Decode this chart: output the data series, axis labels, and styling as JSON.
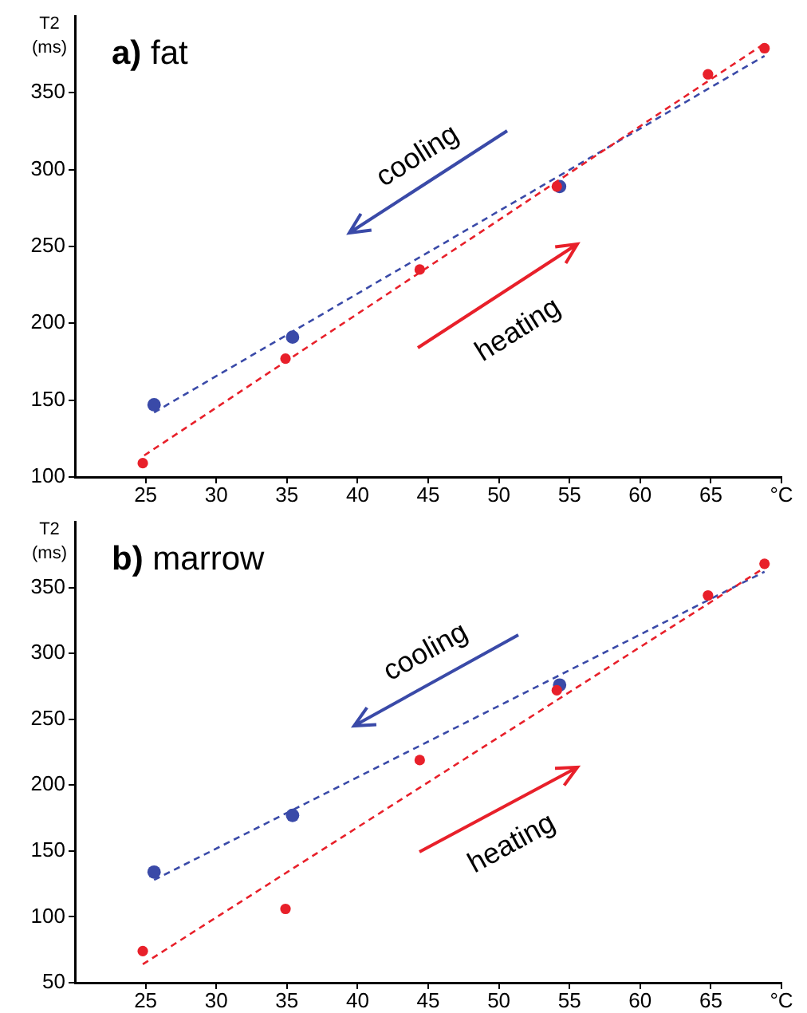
{
  "chart_data": [
    {
      "type": "scatter",
      "title": "a) fat",
      "ylabel": "T2 (ms)",
      "annotations": [
        "cooling",
        "heating"
      ],
      "grid": false,
      "legend": false,
      "xlim": [
        20,
        70
      ],
      "xticks": [
        25,
        30,
        35,
        40,
        45,
        50,
        55,
        60,
        65,
        {
          "value": 70,
          "label": "°C"
        }
      ],
      "ylim": [
        100,
        400
      ],
      "yticks": [
        100,
        150,
        200,
        250,
        300,
        350
      ],
      "series": [
        {
          "type": "line",
          "color": "#e8202a",
          "x": [
            24.9,
            68.8
          ],
          "values": [
            114,
            382
          ],
          "marker": "none",
          "line_style": "dashed"
        },
        {
          "type": "line",
          "color": "#3a4aa8",
          "x": [
            25.6,
            68.8
          ],
          "values": [
            142,
            374
          ],
          "marker": "none",
          "line_style": "dashed"
        },
        {
          "color": "#e8202a",
          "x": [
            24.8,
            34.9,
            44.4,
            54.1,
            64.8,
            68.8
          ],
          "values": [
            109,
            177,
            235,
            289,
            362,
            379
          ],
          "marker": "circle"
        },
        {
          "color": "#3a4aa8",
          "x": [
            25.6,
            35.4,
            54.3
          ],
          "values": [
            147,
            191,
            289
          ],
          "marker": "circle"
        }
      ]
    },
    {
      "type": "scatter",
      "title": "b) marrow",
      "ylabel": "T2 (ms)",
      "annotations": [
        "cooling",
        "heating"
      ],
      "grid": false,
      "legend": false,
      "xlim": [
        20,
        70
      ],
      "xticks": [
        25,
        30,
        35,
        40,
        45,
        50,
        55,
        60,
        65,
        {
          "value": 70,
          "label": "°C"
        }
      ],
      "ylim": [
        50,
        400
      ],
      "yticks": [
        50,
        100,
        150,
        200,
        250,
        300,
        350
      ],
      "series": [
        {
          "type": "line",
          "color": "#e8202a",
          "x": [
            24.8,
            68.8
          ],
          "values": [
            64,
            365
          ],
          "marker": "none",
          "line_style": "dashed"
        },
        {
          "type": "line",
          "color": "#3a4aa8",
          "x": [
            25.6,
            68.8
          ],
          "values": [
            128,
            362
          ],
          "marker": "none",
          "line_style": "dashed"
        },
        {
          "color": "#e8202a",
          "x": [
            24.8,
            34.9,
            44.4,
            54.1,
            64.8,
            68.8
          ],
          "values": [
            74,
            106,
            219,
            272,
            344,
            368
          ],
          "marker": "circle"
        },
        {
          "color": "#3a4aa8",
          "x": [
            25.6,
            35.4,
            54.3
          ],
          "values": [
            134,
            177,
            276
          ],
          "marker": "circle"
        }
      ]
    }
  ]
}
